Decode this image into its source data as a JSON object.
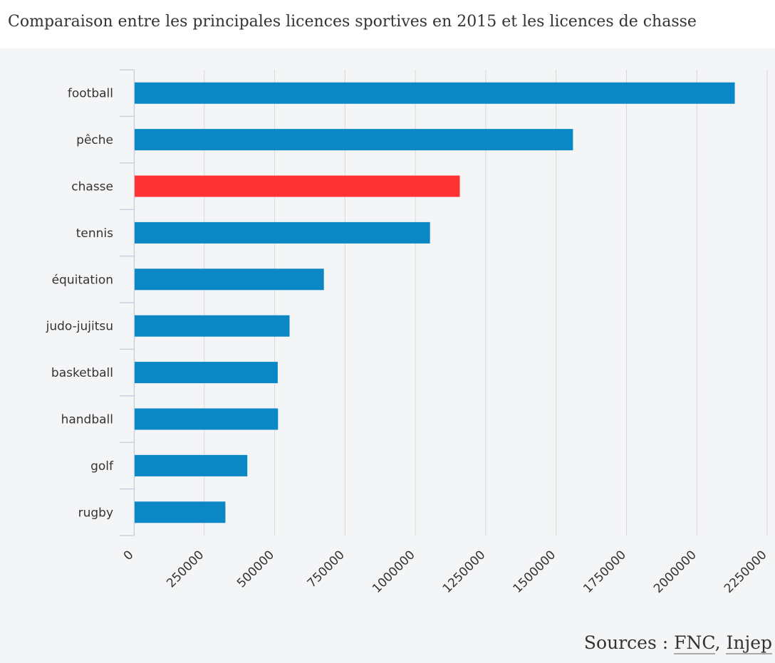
{
  "chart_data": {
    "type": "bar",
    "orientation": "horizontal",
    "title": "Comparaison entre les principales licences sportives en 2015 et les licences de chasse",
    "categories": [
      "football",
      "pêche",
      "chasse",
      "tennis",
      "équitation",
      "judo-jujitsu",
      "basketball",
      "handball",
      "golf",
      "rugby"
    ],
    "values": [
      2135000,
      1560000,
      1158000,
      1052000,
      675000,
      553000,
      511000,
      512000,
      403000,
      325000
    ],
    "highlight": "chasse",
    "xlim": [
      0,
      2250000
    ],
    "xticks": [
      "0",
      "250000",
      "500000",
      "750000",
      "1000000",
      "1250000",
      "1500000",
      "1750000",
      "2000000",
      "2250000"
    ],
    "xlabel": "",
    "ylabel": "",
    "grid": true,
    "legend": "none",
    "colors": {
      "bar": "#0a87c4",
      "highlight": "#ff3333",
      "grid": "#d8d8d8",
      "axis": "#c6d2e0",
      "text": "#333333"
    }
  },
  "sources": {
    "prefix": "Sources : ",
    "links": [
      "FNC",
      "Injep"
    ],
    "separator": ", "
  }
}
